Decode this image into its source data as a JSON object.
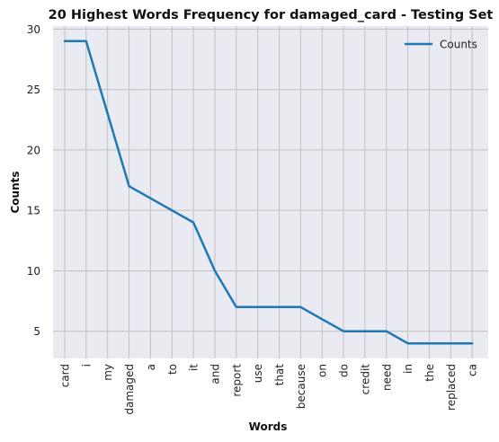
{
  "chart_data": {
    "type": "line",
    "title": "20 Highest Words Frequency for damaged_card - Testing Set",
    "xlabel": "Words",
    "ylabel": "Counts",
    "categories": [
      "card",
      "i",
      "my",
      "damaged",
      "a",
      "to",
      "it",
      "and",
      "report",
      "use",
      "that",
      "because",
      "on",
      "do",
      "credit",
      "need",
      "in",
      "the",
      "replaced",
      "ca"
    ],
    "series": [
      {
        "name": "Counts",
        "values": [
          29,
          29,
          23,
          17,
          16,
          15,
          14,
          10,
          7,
          7,
          7,
          7,
          6,
          5,
          5,
          5,
          4,
          4,
          4,
          4
        ]
      }
    ],
    "ylim": [
      2.75,
      30.25
    ],
    "yticks": [
      5,
      10,
      15,
      20,
      25,
      30
    ],
    "grid": true,
    "legend_position": "top-right",
    "colors": {
      "line": "#1f77b4",
      "background": "#eaeaf2",
      "grid": "#c0c0c0"
    }
  }
}
